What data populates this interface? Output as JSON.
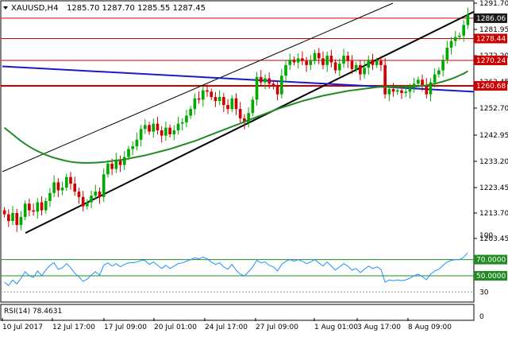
{
  "header": {
    "symbol": "XAUUSD,H4",
    "ohlc": "1285.70 1287.70 1285.55 1287.45",
    "menu_icon": "triangle-down-icon"
  },
  "colors": {
    "background": "#ffffff",
    "bull": "#00aa00",
    "bear": "#cc0000",
    "grid_level": "#cc0000",
    "channel": "#000000",
    "blue_trend": "#1a1acc",
    "ma": "#228b22",
    "rsi": "#1e90ff",
    "rsi_level": "#228b22"
  },
  "chart_data": [
    {
      "type": "candlestick",
      "title": "XAUUSD,H4",
      "ylim": [
        1203.45,
        1291.7
      ],
      "y_ticks": [
        "1291.70",
        "1281.95",
        "1272.20",
        "1262.45",
        "1252.70",
        "1242.95",
        "1233.20",
        "1223.45",
        "1213.70",
        "1203.45"
      ],
      "x_ticks": [
        "10 Jul 2017",
        "12 Jul 17:00",
        "17 Jul 09:00",
        "20 Jul 01:00",
        "24 Jul 17:00",
        "27 Jul 09:00",
        "1 Aug 01:00",
        "3 Aug 17:00",
        "8 Aug 09:00"
      ],
      "price_labels": [
        {
          "label": "1286.06",
          "value": 1286.06,
          "style": "dark"
        },
        {
          "label": "1278.44",
          "value": 1278.44,
          "style": "red"
        },
        {
          "label": "1270.24",
          "value": 1270.24,
          "style": "red"
        },
        {
          "label": "1260.68",
          "value": 1260.68,
          "style": "red"
        }
      ],
      "horizontal_levels": [
        1286.06,
        1278.44,
        1270.24,
        1260.68
      ],
      "closes": [
        1212.5,
        1210.0,
        1213.0,
        1208.5,
        1211.5,
        1216.5,
        1214.0,
        1213.5,
        1217.0,
        1214.0,
        1217.5,
        1220.5,
        1224.5,
        1221.5,
        1222.5,
        1226.5,
        1224.0,
        1221.0,
        1219.0,
        1215.5,
        1217.0,
        1219.5,
        1221.0,
        1219.0,
        1227.5,
        1231.5,
        1229.5,
        1233.0,
        1231.0,
        1234.0,
        1237.0,
        1238.0,
        1240.5,
        1244.5,
        1246.0,
        1243.5,
        1246.5,
        1244.0,
        1242.0,
        1245.0,
        1242.5,
        1244.0,
        1246.5,
        1247.0,
        1249.5,
        1252.0,
        1256.0,
        1255.5,
        1259.0,
        1258.5,
        1256.5,
        1255.0,
        1256.5,
        1253.5,
        1252.0,
        1256.0,
        1252.0,
        1248.5,
        1247.0,
        1250.5,
        1255.5,
        1264.0,
        1262.0,
        1263.5,
        1261.5,
        1260.5,
        1257.5,
        1264.5,
        1268.5,
        1270.5,
        1269.5,
        1271.0,
        1270.0,
        1268.5,
        1270.0,
        1273.0,
        1271.0,
        1268.5,
        1272.0,
        1269.5,
        1266.5,
        1269.0,
        1272.0,
        1270.0,
        1267.0,
        1268.5,
        1265.0,
        1267.5,
        1270.5,
        1268.5,
        1270.0,
        1268.5,
        1257.5,
        1259.5,
        1258.5,
        1259.0,
        1258.0,
        1258.5,
        1260.0,
        1261.5,
        1263.0,
        1261.0,
        1257.5,
        1262.0,
        1265.0,
        1266.5,
        1270.5,
        1275.0,
        1277.5,
        1279.0,
        1279.5,
        1283.5,
        1287.45
      ],
      "ma_values": [
        1245.0,
        1243.7,
        1242.5,
        1241.2,
        1240.0,
        1238.9,
        1237.9,
        1237.0,
        1236.2,
        1235.5,
        1234.8,
        1234.2,
        1233.7,
        1233.3,
        1232.9,
        1232.5,
        1232.2,
        1232.0,
        1231.9,
        1231.8,
        1231.8,
        1231.8,
        1231.9,
        1232.0,
        1232.1,
        1232.3,
        1232.5,
        1232.7,
        1232.9,
        1233.1,
        1233.4,
        1233.7,
        1234.0,
        1234.3,
        1234.6,
        1235.0,
        1235.4,
        1235.8,
        1236.2,
        1236.6,
        1237.0,
        1237.5,
        1238.0,
        1238.5,
        1239.0,
        1239.5,
        1240.0,
        1240.6,
        1241.2,
        1241.8,
        1242.4,
        1243.0,
        1243.6,
        1244.2,
        1244.8,
        1245.4,
        1246.0,
        1246.6,
        1247.2,
        1247.8,
        1248.4,
        1249.0,
        1249.6,
        1250.2,
        1250.8,
        1251.4,
        1252.0,
        1252.5,
        1253.0,
        1253.5,
        1254.0,
        1254.5,
        1255.0,
        1255.4,
        1255.8,
        1256.2,
        1256.6,
        1257.0,
        1257.3,
        1257.6,
        1257.9,
        1258.2,
        1258.5,
        1258.8,
        1259.0,
        1259.2,
        1259.4,
        1259.6,
        1259.8,
        1260.0,
        1260.2,
        1260.3,
        1260.3,
        1260.3,
        1260.3,
        1260.3,
        1260.3,
        1260.3,
        1260.3,
        1260.4,
        1260.5,
        1260.7,
        1260.9,
        1261.2,
        1261.5,
        1261.9,
        1262.3,
        1262.8,
        1263.3,
        1263.9,
        1264.6,
        1265.3,
        1266.2
      ]
    },
    {
      "type": "line",
      "title": "RSI(14) 78.4631",
      "ylim": [
        0,
        100
      ],
      "y_ticks": [
        "100",
        "70.0000",
        "50.0000",
        "30",
        "0"
      ],
      "levels": [
        70,
        50,
        30
      ],
      "values": [
        42,
        38,
        45,
        40,
        47,
        55,
        50,
        48,
        56,
        50,
        57,
        63,
        66,
        58,
        60,
        65,
        60,
        53,
        49,
        43,
        46,
        51,
        55,
        51,
        63,
        66,
        62,
        65,
        61,
        64,
        66,
        66,
        67,
        69,
        69,
        64,
        67,
        63,
        59,
        63,
        59,
        62,
        65,
        66,
        68,
        70,
        72,
        71,
        73,
        71,
        67,
        64,
        66,
        61,
        58,
        64,
        57,
        52,
        50,
        55,
        61,
        69,
        66,
        67,
        63,
        61,
        56,
        64,
        68,
        70,
        68,
        70,
        68,
        65,
        67,
        70,
        66,
        62,
        67,
        62,
        57,
        61,
        65,
        62,
        57,
        59,
        54,
        58,
        62,
        59,
        61,
        58,
        42,
        45,
        44,
        45,
        44,
        45,
        47,
        50,
        52,
        49,
        45,
        52,
        56,
        58,
        63,
        67,
        69,
        70,
        70,
        73,
        78.46
      ]
    }
  ]
}
